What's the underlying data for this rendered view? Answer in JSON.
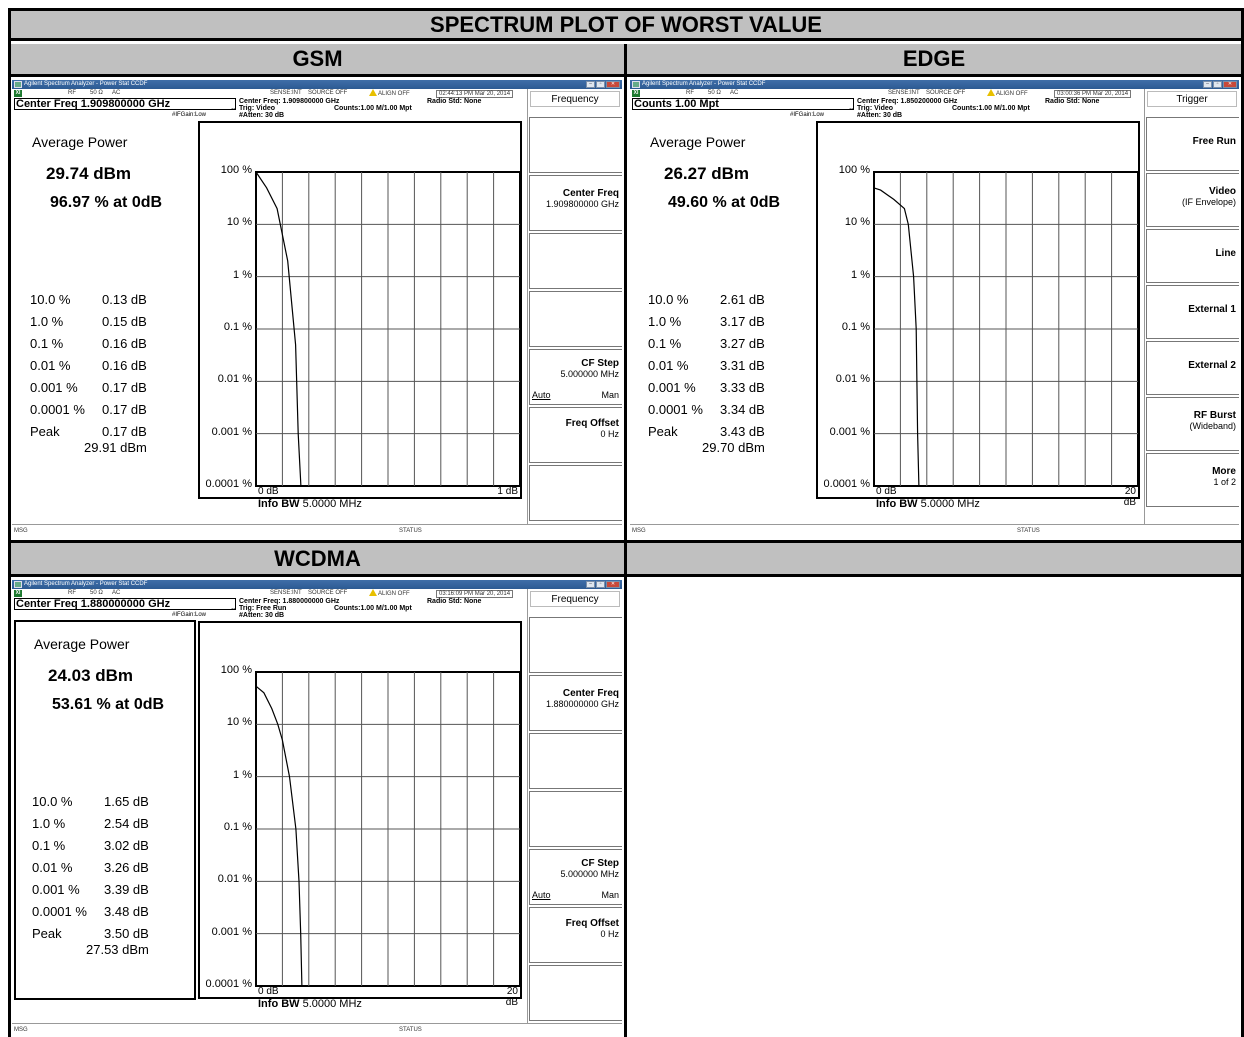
{
  "page_title": "SPECTRUM PLOT OF WORST VALUE",
  "section_labels": {
    "gsm": "GSM",
    "edge": "EDGE",
    "wcdma": "WCDMA"
  },
  "common": {
    "window_title": "Agilent Spectrum Analyzer - Power Stat CCDF",
    "indicator": "XI",
    "rf": "RF",
    "impedance": "50 Ω",
    "coupling": "AC",
    "sense": "SENSE:INT",
    "source": "SOURCE OFF",
    "align": "ALIGN OFF",
    "radio_std": "Radio Std: None",
    "counts_info": "Counts:1.00 M/1.00 Mpt",
    "atten": "#Atten: 30 dB",
    "ifgain": "#IFGain:Low",
    "avg_title": "Average Power",
    "y_axis_labels": [
      "100 %",
      "10 %",
      "1 %",
      "0.1 %",
      "0.01 %",
      "0.001 %",
      "0.0001 %"
    ],
    "x_start": "0 dB",
    "info_bw_label": "Info BW",
    "info_bw_value": "5.0000 MHz",
    "msg": "MSG",
    "status": "STATUS",
    "ccdf_percents": [
      "10.0 %",
      "1.0 %",
      "0.1 %",
      "0.01 %",
      "0.001 %",
      "0.0001 %"
    ],
    "peak_label": "Peak"
  },
  "gsm": {
    "timestamp": "02:44:13 PM Mar 20, 2014",
    "active_fn": "Center Freq 1.909800000 GHz",
    "center_freq_line": "Center Freq: 1.909800000 GHz",
    "trig": "Trig: Video",
    "avg_power": "29.74 dBm",
    "pct_at_0db": "96.97 % at 0dB",
    "ccdf_values": [
      "0.13 dB",
      "0.15 dB",
      "0.16 dB",
      "0.16 dB",
      "0.17 dB",
      "0.17 dB"
    ],
    "peak_db": "0.17 dB",
    "peak_dbm": "29.91 dBm",
    "x_end": "1 dB",
    "softkeys": {
      "menu": "Frequency",
      "center_freq_label": "Center Freq",
      "center_freq_value": "1.909800000 GHz",
      "cf_step_label": "CF Step",
      "cf_step_value": "5.000000 MHz",
      "auto": "Auto",
      "man": "Man",
      "freq_offset_label": "Freq Offset",
      "freq_offset_value": "0 Hz"
    }
  },
  "edge": {
    "timestamp": "03:00:36 PM Mar 20, 2014",
    "active_fn": "Counts 1.00 Mpt",
    "center_freq_line": "Center Freq: 1.850200000 GHz",
    "trig": "Trig: Video",
    "avg_power": "26.27 dBm",
    "pct_at_0db": "49.60 % at 0dB",
    "ccdf_values": [
      "2.61 dB",
      "3.17 dB",
      "3.27 dB",
      "3.31 dB",
      "3.33 dB",
      "3.34 dB"
    ],
    "peak_db": "3.43 dB",
    "peak_dbm": "29.70 dBm",
    "x_end": "20 dB",
    "softkeys": {
      "menu": "Trigger",
      "free_run": "Free Run",
      "video_label": "Video",
      "video_sub": "(IF Envelope)",
      "line": "Line",
      "external1": "External 1",
      "external2": "External 2",
      "rf_burst_label": "RF Burst",
      "rf_burst_sub": "(Wideband)",
      "more_label": "More",
      "more_sub": "1 of 2"
    }
  },
  "wcdma": {
    "timestamp": "03:16:09 PM Mar 20, 2014",
    "active_fn": "Center Freq 1.880000000 GHz",
    "center_freq_line": "Center Freq: 1.880000000 GHz",
    "trig": "Trig: Free Run",
    "avg_power": "24.03 dBm",
    "pct_at_0db": "53.61 % at 0dB",
    "ccdf_values": [
      "1.65 dB",
      "2.54 dB",
      "3.02 dB",
      "3.26 dB",
      "3.39 dB",
      "3.48 dB"
    ],
    "peak_db": "3.50 dB",
    "peak_dbm": "27.53 dBm",
    "x_end": "20 dB",
    "softkeys": {
      "menu": "Frequency",
      "center_freq_label": "Center Freq",
      "center_freq_value": "1.880000000 GHz",
      "cf_step_label": "CF Step",
      "cf_step_value": "5.000000 MHz",
      "auto": "Auto",
      "man": "Man",
      "freq_offset_label": "Freq Offset",
      "freq_offset_value": "0 Hz"
    }
  },
  "chart_data": [
    {
      "type": "line",
      "name_ref": "gsm",
      "xlabel": "",
      "ylabel": "",
      "x_range": [
        0,
        1
      ],
      "y_range_percent": [
        0.0001,
        100
      ],
      "y_scale": "log",
      "grid": true,
      "series": [
        {
          "x": [
            0,
            0.04,
            0.08,
            0.12,
            0.15,
            0.16,
            0.17
          ],
          "y": [
            100,
            50,
            20,
            2,
            0.05,
            0.001,
            0.0001
          ]
        }
      ]
    },
    {
      "type": "line",
      "name_ref": "edge",
      "xlabel": "",
      "ylabel": "",
      "x_range": [
        0,
        20
      ],
      "y_range_percent": [
        0.0001,
        100
      ],
      "y_scale": "log",
      "grid": true,
      "series": [
        {
          "x": [
            0,
            0.5,
            1.5,
            2.3,
            2.6,
            3.0,
            3.2,
            3.3,
            3.4
          ],
          "y": [
            49.6,
            45,
            30,
            20,
            10,
            1,
            0.1,
            0.001,
            0.0001
          ]
        }
      ]
    },
    {
      "type": "line",
      "name_ref": "wcdma",
      "xlabel": "",
      "ylabel": "",
      "x_range": [
        0,
        20
      ],
      "y_range_percent": [
        0.0001,
        100
      ],
      "y_scale": "log",
      "grid": true,
      "series": [
        {
          "x": [
            0,
            0.6,
            1.2,
            1.65,
            2.0,
            2.54,
            3.02,
            3.26,
            3.39,
            3.48,
            3.5
          ],
          "y": [
            53.6,
            40,
            20,
            10,
            5,
            1,
            0.1,
            0.01,
            0.001,
            0.0001,
            0.0001
          ]
        }
      ]
    }
  ]
}
